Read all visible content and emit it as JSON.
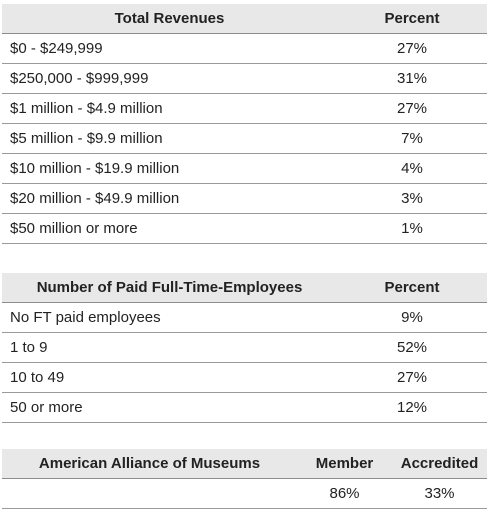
{
  "revenues": {
    "header_label": "Total Revenues",
    "header_value": "Percent",
    "rows": [
      {
        "label": "$0 - $249,999",
        "value": "27%"
      },
      {
        "label": "$250,000 - $999,999",
        "value": "31%"
      },
      {
        "label": "$1 million - $4.9 million",
        "value": "27%"
      },
      {
        "label": "$5 million - $9.9 million",
        "value": "7%"
      },
      {
        "label": "$10 million - $19.9 million",
        "value": "4%"
      },
      {
        "label": "$20 million - $49.9 million",
        "value": "3%"
      },
      {
        "label": "$50 million or more",
        "value": "1%"
      }
    ]
  },
  "employees": {
    "header_label": "Number of Paid Full-Time-Employees",
    "header_value": "Percent",
    "rows": [
      {
        "label": "No FT paid employees",
        "value": "9%"
      },
      {
        "label": "1 to 9",
        "value": "52%"
      },
      {
        "label": "10 to 49",
        "value": "27%"
      },
      {
        "label": "50 or more",
        "value": "12%"
      }
    ]
  },
  "aam": {
    "header_label": "American Alliance of Museums",
    "header_member": "Member",
    "header_accredited": "Accredited",
    "row": {
      "label": "",
      "member": "86%",
      "accredited": "33%"
    }
  }
}
